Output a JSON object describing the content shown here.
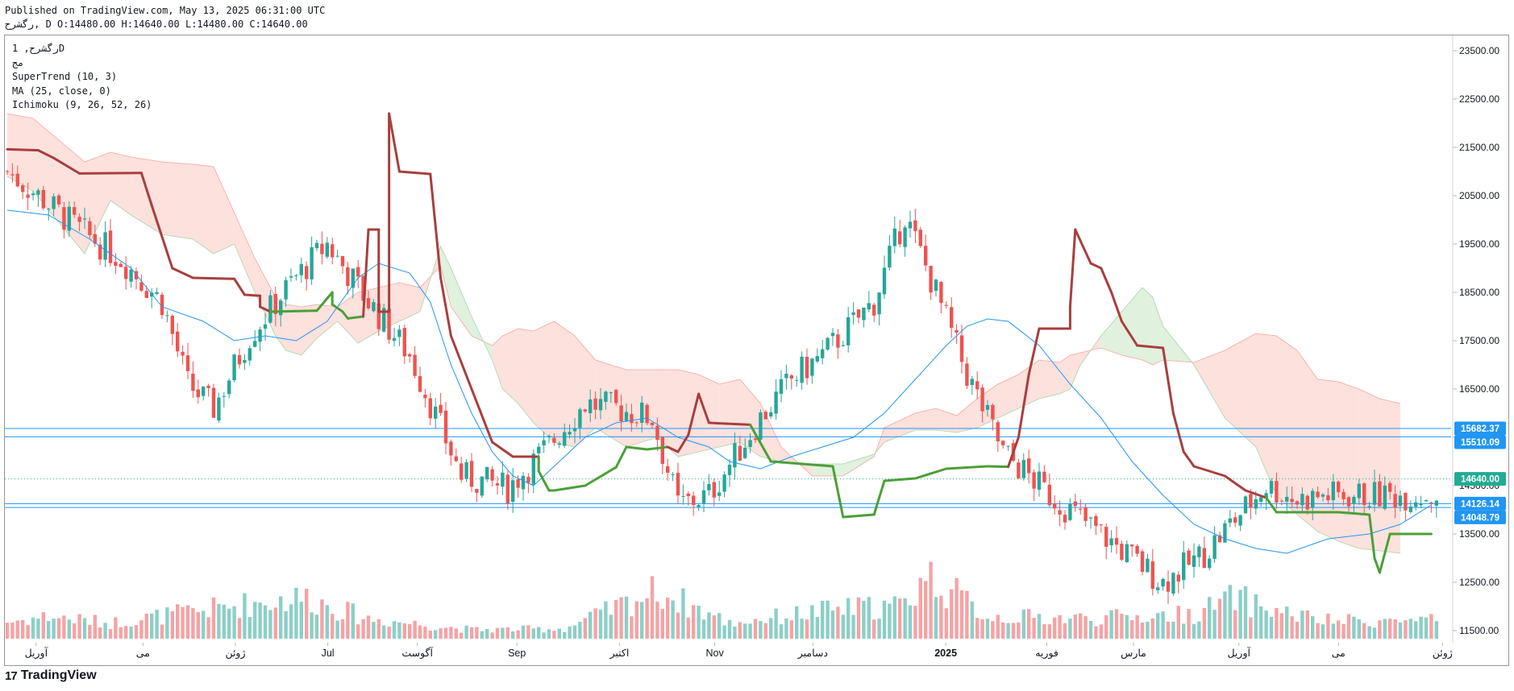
{
  "header": {
    "published": "Published on TradingView.com, May 13, 2025 06:31:00 UTC",
    "ohlc": "رگشرح, D O:14480.00 H:14640.00 L:14480.00 C:14640.00"
  },
  "legend": {
    "symbol": "رگشرح, 1D",
    "exchange": "مج",
    "supertrend": "SuperTrend (10, 3)",
    "ma": "MA (25, close, 0)",
    "ichimoku": "Ichimoku (9, 26, 52, 26)"
  },
  "branding": {
    "logo_mark": "17",
    "logo_text": "TradingView"
  },
  "colors": {
    "up": "#26a69a",
    "down": "#ef5350",
    "upVol": "#8ccfc7",
    "downVol": "#f5a3a5",
    "supertrendUp": "#4c9f38",
    "supertrendDown": "#a83f3f",
    "ma": "#2196f3",
    "cloudBear": "#fcd7d2",
    "cloudBull": "#d6ecd3",
    "hline": "#2196f3",
    "lastPrice": "#22ab94"
  },
  "chart_data": {
    "type": "candlestick",
    "y_axis": {
      "min": 11500,
      "max": 23500,
      "ticks": [
        23500,
        22500,
        21500,
        20500,
        19500,
        18500,
        17500,
        16500,
        15500,
        14500,
        13500,
        12500,
        11500
      ],
      "tick_labels": [
        "23500.00",
        "22500.00",
        "21500.00",
        "20500.00",
        "19500.00",
        "18500.00",
        "17500.00",
        "16500.00",
        "15500.00",
        "14500.00",
        "13500.00",
        "12500.00",
        "11500.00"
      ]
    },
    "x_axis": {
      "labels": [
        {
          "text": "آوریل",
          "pos": 0.02,
          "bold": false
        },
        {
          "text": "می",
          "pos": 0.094,
          "bold": false
        },
        {
          "text": "ژوئن",
          "pos": 0.158,
          "bold": false
        },
        {
          "text": "Jul",
          "pos": 0.222,
          "bold": false
        },
        {
          "text": "آگوست",
          "pos": 0.284,
          "bold": false
        },
        {
          "text": "Sep",
          "pos": 0.353,
          "bold": false
        },
        {
          "text": "اکتبر",
          "pos": 0.424,
          "bold": false
        },
        {
          "text": "Nov",
          "pos": 0.49,
          "bold": false
        },
        {
          "text": "دسامبر",
          "pos": 0.558,
          "bold": false
        },
        {
          "text": "2025",
          "pos": 0.65,
          "bold": true
        },
        {
          "text": "فوریه",
          "pos": 0.72,
          "bold": false
        },
        {
          "text": "مارس",
          "pos": 0.78,
          "bold": false
        },
        {
          "text": "آوریل",
          "pos": 0.853,
          "bold": false
        },
        {
          "text": "می",
          "pos": 0.922,
          "bold": false
        },
        {
          "text": "ژوئن",
          "pos": 0.994,
          "bold": false
        }
      ]
    },
    "horizontal_lines": [
      15682.37,
      15510.09,
      14126.14,
      14048.79
    ],
    "price_badges": [
      {
        "value": 15682.37,
        "label": "15682.37",
        "color": "#2196f3"
      },
      {
        "value": 15510.09,
        "label": "15510.09",
        "color": "#2196f3"
      },
      {
        "value": 14640.0,
        "label": "14640.00",
        "color": "#22ab94"
      },
      {
        "value": 14126.14,
        "label": "14126.14",
        "color": "#2196f3"
      },
      {
        "value": 14048.79,
        "label": "14048.79",
        "color": "#2196f3"
      }
    ],
    "last_price": 14640.0,
    "n_bars": 278,
    "trend_anchors": [
      [
        0,
        21000
      ],
      [
        6,
        20500
      ],
      [
        14,
        19800
      ],
      [
        22,
        19200
      ],
      [
        30,
        18300
      ],
      [
        35,
        16600
      ],
      [
        40,
        16100
      ],
      [
        47,
        17600
      ],
      [
        55,
        18700
      ],
      [
        62,
        19500
      ],
      [
        70,
        18300
      ],
      [
        78,
        17200
      ],
      [
        88,
        14700
      ],
      [
        97,
        14450
      ],
      [
        103,
        15100
      ],
      [
        112,
        16200
      ],
      [
        118,
        16100
      ],
      [
        125,
        15900
      ],
      [
        130,
        14100
      ],
      [
        136,
        14300
      ],
      [
        146,
        15900
      ],
      [
        152,
        16700
      ],
      [
        158,
        17200
      ],
      [
        168,
        18300
      ],
      [
        174,
        20100
      ],
      [
        180,
        18500
      ],
      [
        186,
        16800
      ],
      [
        193,
        15200
      ],
      [
        202,
        14300
      ],
      [
        212,
        13500
      ],
      [
        224,
        12500
      ],
      [
        232,
        13100
      ],
      [
        237,
        13700
      ],
      [
        244,
        14500
      ],
      [
        250,
        14200
      ],
      [
        255,
        14300
      ]
    ],
    "volume_profile": [
      [
        0,
        1.5
      ],
      [
        8,
        2
      ],
      [
        20,
        1.4
      ],
      [
        48,
        3.2
      ],
      [
        58,
        3.7
      ],
      [
        66,
        2.4
      ],
      [
        70,
        1.8
      ],
      [
        90,
        0.8
      ],
      [
        108,
        0.9
      ],
      [
        126,
        4.3
      ],
      [
        140,
        1.4
      ],
      [
        160,
        2.6
      ],
      [
        174,
        3
      ],
      [
        178,
        5.8
      ],
      [
        190,
        2
      ],
      [
        210,
        1.8
      ],
      [
        230,
        2.2
      ],
      [
        238,
        3.7
      ],
      [
        244,
        2.7
      ],
      [
        255,
        1.6
      ]
    ],
    "supertrend": [
      [
        0,
        21460
      ],
      [
        6,
        21440
      ],
      [
        9,
        21280
      ],
      [
        14,
        20960
      ],
      [
        26,
        20970
      ],
      [
        28,
        20300
      ],
      [
        32,
        19000
      ],
      [
        36,
        18800
      ],
      [
        44,
        18780
      ],
      [
        46,
        18450
      ],
      [
        49,
        18430
      ],
      [
        49,
        18200
      ],
      [
        51,
        18100
      ],
      [
        60,
        18120
      ],
      [
        63,
        18500
      ],
      [
        63,
        18250
      ],
      [
        65,
        18100
      ],
      [
        66,
        17960
      ],
      [
        69,
        18000
      ],
      [
        70,
        19800
      ],
      [
        72,
        19800
      ],
      [
        72,
        18100
      ],
      [
        74,
        18100
      ],
      [
        74,
        22200
      ],
      [
        76,
        21000
      ],
      [
        82,
        20950
      ],
      [
        84,
        18800
      ],
      [
        86,
        17600
      ],
      [
        90,
        16500
      ],
      [
        94,
        15400
      ],
      [
        98,
        15100
      ],
      [
        103,
        15100
      ],
      [
        103,
        14800
      ],
      [
        104,
        14600
      ],
      [
        105,
        14400
      ],
      [
        106,
        14400
      ],
      [
        112,
        14500
      ],
      [
        118,
        14880
      ],
      [
        120,
        15300
      ],
      [
        124,
        15250
      ],
      [
        128,
        15300
      ],
      [
        130,
        15200
      ],
      [
        132,
        15550
      ],
      [
        134,
        16400
      ],
      [
        136,
        15800
      ],
      [
        144,
        15760
      ],
      [
        148,
        15000
      ],
      [
        160,
        14900
      ],
      [
        162,
        13850
      ],
      [
        168,
        13900
      ],
      [
        170,
        14600
      ],
      [
        176,
        14650
      ],
      [
        182,
        14850
      ],
      [
        190,
        14900
      ],
      [
        194,
        14890
      ],
      [
        196,
        15500
      ],
      [
        198,
        16800
      ],
      [
        200,
        17750
      ],
      [
        206,
        17750
      ],
      [
        206,
        18200
      ],
      [
        207,
        19800
      ],
      [
        210,
        19100
      ],
      [
        212,
        19000
      ],
      [
        214,
        18500
      ],
      [
        216,
        17900
      ],
      [
        219,
        17400
      ],
      [
        224,
        17350
      ],
      [
        226,
        16000
      ],
      [
        228,
        15200
      ],
      [
        230,
        14900
      ],
      [
        236,
        14700
      ],
      [
        240,
        14400
      ],
      [
        244,
        14250
      ],
      [
        246,
        13950
      ],
      [
        256,
        13950
      ],
      [
        258,
        13950
      ],
      [
        264,
        13900
      ],
      [
        265,
        13000
      ],
      [
        266,
        12700
      ],
      [
        268,
        13500
      ],
      [
        276,
        13500
      ]
    ],
    "moving_average": [
      [
        0,
        20200
      ],
      [
        8,
        20100
      ],
      [
        16,
        19600
      ],
      [
        24,
        19000
      ],
      [
        30,
        18200
      ],
      [
        38,
        17900
      ],
      [
        44,
        17500
      ],
      [
        50,
        17600
      ],
      [
        56,
        17500
      ],
      [
        62,
        17900
      ],
      [
        68,
        18800
      ],
      [
        72,
        19100
      ],
      [
        78,
        18900
      ],
      [
        82,
        18300
      ],
      [
        86,
        17000
      ],
      [
        90,
        16000
      ],
      [
        94,
        15200
      ],
      [
        98,
        14700
      ],
      [
        102,
        14500
      ],
      [
        106,
        14900
      ],
      [
        112,
        15500
      ],
      [
        118,
        15800
      ],
      [
        124,
        15900
      ],
      [
        130,
        15500
      ],
      [
        136,
        15300
      ],
      [
        140,
        15000
      ],
      [
        146,
        14850
      ],
      [
        152,
        15100
      ],
      [
        158,
        15300
      ],
      [
        164,
        15500
      ],
      [
        170,
        16000
      ],
      [
        176,
        16700
      ],
      [
        182,
        17400
      ],
      [
        186,
        17800
      ],
      [
        190,
        17950
      ],
      [
        194,
        17900
      ],
      [
        200,
        17400
      ],
      [
        206,
        16600
      ],
      [
        212,
        15900
      ],
      [
        218,
        15000
      ],
      [
        224,
        14300
      ],
      [
        230,
        13700
      ],
      [
        236,
        13400
      ],
      [
        242,
        13200
      ],
      [
        248,
        13100
      ],
      [
        256,
        13400
      ],
      [
        264,
        13500
      ],
      [
        270,
        13700
      ],
      [
        276,
        14100
      ]
    ],
    "cloud": [
      [
        0,
        22200,
        20900
      ],
      [
        5,
        22100,
        20600
      ],
      [
        15,
        21200,
        19300
      ],
      [
        20,
        21400,
        20400
      ],
      [
        24,
        21300,
        20100
      ],
      [
        30,
        21200,
        19700
      ],
      [
        36,
        21150,
        19600
      ],
      [
        40,
        21100,
        19300
      ],
      [
        44,
        20150,
        19500
      ],
      [
        48,
        19200,
        18500
      ],
      [
        52,
        18400,
        17600
      ],
      [
        54,
        18250,
        17300
      ],
      [
        57,
        18200,
        17200
      ],
      [
        60,
        18250,
        17550
      ],
      [
        64,
        18200,
        17900
      ],
      [
        68,
        18500,
        17450
      ],
      [
        72,
        18600,
        17700
      ],
      [
        76,
        18700,
        17900
      ],
      [
        80,
        18600,
        18100
      ],
      [
        84,
        19050,
        19450
      ],
      [
        86,
        18200,
        19000
      ],
      [
        90,
        17600,
        18000
      ],
      [
        94,
        17400,
        17100
      ],
      [
        96,
        17600,
        16500
      ],
      [
        99,
        17750,
        16200
      ],
      [
        102,
        17700,
        15800
      ],
      [
        106,
        17900,
        15400
      ],
      [
        110,
        17600,
        15300
      ],
      [
        114,
        17100,
        15700
      ],
      [
        120,
        16900,
        15300
      ],
      [
        126,
        16900,
        15500
      ],
      [
        130,
        16900,
        15100
      ],
      [
        134,
        16800,
        15200
      ],
      [
        138,
        16600,
        15300
      ],
      [
        142,
        16700,
        15400
      ],
      [
        146,
        16200,
        15100
      ],
      [
        150,
        15300,
        15000
      ],
      [
        156,
        14700,
        14950
      ],
      [
        162,
        14700,
        14950
      ],
      [
        168,
        15100,
        15150
      ],
      [
        170,
        15700,
        15400
      ],
      [
        176,
        16000,
        15650
      ],
      [
        180,
        16100,
        15650
      ],
      [
        184,
        15950,
        15600
      ],
      [
        188,
        16300,
        15700
      ],
      [
        192,
        16600,
        15900
      ],
      [
        196,
        16800,
        16100
      ],
      [
        200,
        17100,
        16300
      ],
      [
        204,
        17050,
        16400
      ],
      [
        206,
        17200,
        16500
      ],
      [
        208,
        17250,
        17000
      ],
      [
        212,
        17350,
        17600
      ],
      [
        216,
        17200,
        18100
      ],
      [
        220,
        17100,
        18600
      ],
      [
        222,
        17000,
        18400
      ],
      [
        224,
        17100,
        17800
      ],
      [
        230,
        17050,
        17000
      ],
      [
        236,
        17300,
        15900
      ],
      [
        242,
        17650,
        15300
      ],
      [
        246,
        17600,
        14300
      ],
      [
        250,
        17300,
        13900
      ],
      [
        254,
        16700,
        13550
      ],
      [
        258,
        16650,
        13350
      ],
      [
        262,
        16500,
        13200
      ],
      [
        266,
        16300,
        13150
      ],
      [
        270,
        16200,
        13100
      ]
    ]
  }
}
